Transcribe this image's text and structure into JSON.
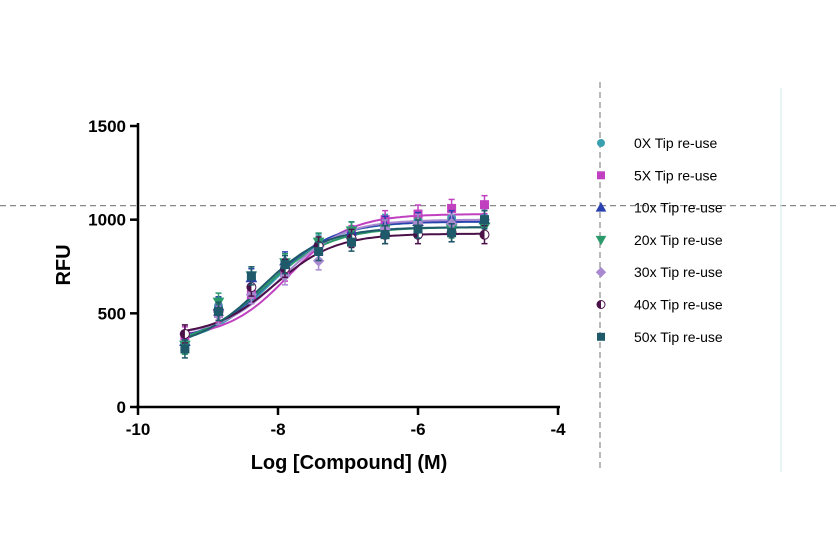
{
  "chart_data": {
    "type": "scatter",
    "xlabel": "Log [Compound] (M)",
    "ylabel": "RFU",
    "xlim": [
      -10,
      -4
    ],
    "ylim": [
      0,
      1500
    ],
    "x_ticks": [
      -10,
      -8,
      -6,
      -4
    ],
    "y_ticks": [
      0,
      500,
      1000,
      1500
    ],
    "grid": false,
    "legend_position": "right",
    "fit": "four-parameter logistic",
    "reference_lines": {
      "horizontal_y": 1075,
      "vertical_x": -3.4
    },
    "x": [
      -9.33,
      -8.85,
      -8.38,
      -7.9,
      -7.42,
      -6.95,
      -6.47,
      -6.0,
      -5.52,
      -5.05
    ],
    "series": [
      {
        "name": "0X Tip re-use",
        "color": "#3aa0b0",
        "marker": "circle",
        "values": [
          330,
          540,
          690,
          770,
          870,
          940,
          980,
          1000,
          1010,
          1010
        ],
        "fit": {
          "bottom": 330,
          "top": 990,
          "logEC50": -8.1,
          "hill": 0.95
        }
      },
      {
        "name": "5X Tip re-use",
        "color": "#c040c0",
        "marker": "square",
        "values": [
          380,
          500,
          600,
          720,
          830,
          920,
          1000,
          1030,
          1060,
          1080
        ],
        "fit": {
          "bottom": 370,
          "top": 1030,
          "logEC50": -7.85,
          "hill": 1.0
        }
      },
      {
        "name": "10x Tip re-use",
        "color": "#2a40b0",
        "marker": "triangle-up",
        "values": [
          350,
          540,
          690,
          780,
          880,
          940,
          970,
          990,
          1000,
          1000
        ],
        "fit": {
          "bottom": 340,
          "top": 990,
          "logEC50": -8.12,
          "hill": 0.95
        }
      },
      {
        "name": "20x Tip re-use",
        "color": "#2a9a6a",
        "marker": "triangle-down",
        "values": [
          330,
          560,
          700,
          770,
          880,
          940,
          950,
          960,
          950,
          960
        ],
        "fit": {
          "bottom": 320,
          "top": 960,
          "logEC50": -8.2,
          "hill": 0.9
        }
      },
      {
        "name": "30x Tip re-use",
        "color": "#a98ad0",
        "marker": "diamond",
        "values": [
          390,
          490,
          600,
          700,
          780,
          900,
          950,
          980,
          980,
          1000
        ],
        "fit": {
          "bottom": 380,
          "top": 1000,
          "logEC50": -7.95,
          "hill": 1.0
        }
      },
      {
        "name": "40x Tip re-use",
        "color": "#4a1048",
        "marker": "half-circle",
        "values": [
          390,
          510,
          640,
          740,
          860,
          900,
          920,
          920,
          930,
          920
        ],
        "fit": {
          "bottom": 380,
          "top": 925,
          "logEC50": -8.05,
          "hill": 1.0
        }
      },
      {
        "name": "50x Tip re-use",
        "color": "#1f5a6a",
        "marker": "square-bar",
        "values": [
          310,
          510,
          700,
          760,
          830,
          880,
          920,
          950,
          930,
          1000
        ],
        "fit": {
          "bottom": 310,
          "top": 960,
          "logEC50": -8.25,
          "hill": 0.95
        }
      }
    ]
  }
}
